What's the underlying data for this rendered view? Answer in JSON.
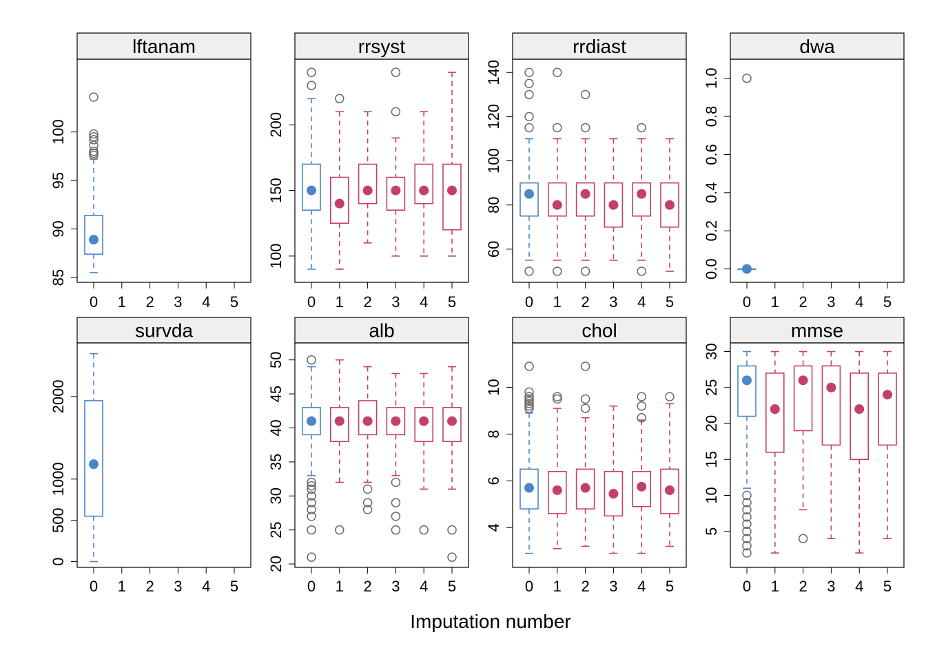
{
  "figure": {
    "xlabel": "Imputation number",
    "colors": {
      "observed": "#4a86c8",
      "imputed": "#c43f6b",
      "outlier": "#6a6a6a",
      "strip": "#efefef"
    }
  },
  "chart_data": [
    {
      "type": "box",
      "title": "lftanam",
      "categories": [
        "0",
        "1",
        "2",
        "3",
        "4",
        "5"
      ],
      "ylim": [
        84.5,
        107.5
      ],
      "yticks": [
        85,
        90,
        95,
        100
      ],
      "boxes": [
        {
          "imp": 0,
          "lower_whisker": 85.5,
          "q1": 87.4,
          "median": 88.9,
          "q3": 91.4,
          "upper_whisker": 97.2,
          "outliers": [
            97.6,
            97.8,
            98.0,
            98.6,
            99.2,
            99.5,
            99.8,
            103.6
          ]
        }
      ]
    },
    {
      "type": "box",
      "title": "rrsyst",
      "categories": [
        "0",
        "1",
        "2",
        "3",
        "4",
        "5"
      ],
      "ylim": [
        80,
        250
      ],
      "yticks": [
        100,
        150,
        200
      ],
      "boxes": [
        {
          "imp": 0,
          "lower_whisker": 90,
          "q1": 135,
          "median": 150,
          "q3": 170,
          "upper_whisker": 220,
          "outliers": [
            230,
            240
          ]
        },
        {
          "imp": 1,
          "lower_whisker": 90,
          "q1": 125,
          "median": 140,
          "q3": 160,
          "upper_whisker": 210,
          "outliers": [
            220
          ]
        },
        {
          "imp": 2,
          "lower_whisker": 110,
          "q1": 140,
          "median": 150,
          "q3": 170,
          "upper_whisker": 210,
          "outliers": []
        },
        {
          "imp": 3,
          "lower_whisker": 100,
          "q1": 135,
          "median": 150,
          "q3": 160,
          "upper_whisker": 190,
          "outliers": [
            210,
            240
          ]
        },
        {
          "imp": 4,
          "lower_whisker": 100,
          "q1": 140,
          "median": 150,
          "q3": 170,
          "upper_whisker": 210,
          "outliers": []
        },
        {
          "imp": 5,
          "lower_whisker": 100,
          "q1": 120,
          "median": 150,
          "q3": 170,
          "upper_whisker": 240,
          "outliers": []
        }
      ]
    },
    {
      "type": "box",
      "title": "rrdiast",
      "categories": [
        "0",
        "1",
        "2",
        "3",
        "4",
        "5"
      ],
      "ylim": [
        45,
        146
      ],
      "yticks": [
        60,
        80,
        100,
        120,
        140
      ],
      "boxes": [
        {
          "imp": 0,
          "lower_whisker": 55,
          "q1": 75,
          "median": 85,
          "q3": 90,
          "upper_whisker": 110,
          "outliers": [
            50,
            115,
            120,
            130,
            135,
            140
          ]
        },
        {
          "imp": 1,
          "lower_whisker": 55,
          "q1": 75,
          "median": 80,
          "q3": 90,
          "upper_whisker": 110,
          "outliers": [
            50,
            115,
            140
          ]
        },
        {
          "imp": 2,
          "lower_whisker": 55,
          "q1": 75,
          "median": 85,
          "q3": 90,
          "upper_whisker": 110,
          "outliers": [
            50,
            115,
            130
          ]
        },
        {
          "imp": 3,
          "lower_whisker": 55,
          "q1": 70,
          "median": 80,
          "q3": 90,
          "upper_whisker": 110,
          "outliers": []
        },
        {
          "imp": 4,
          "lower_whisker": 55,
          "q1": 75,
          "median": 85,
          "q3": 90,
          "upper_whisker": 110,
          "outliers": [
            50,
            115
          ]
        },
        {
          "imp": 5,
          "lower_whisker": 50,
          "q1": 70,
          "median": 80,
          "q3": 90,
          "upper_whisker": 110,
          "outliers": []
        }
      ]
    },
    {
      "type": "box",
      "title": "dwa",
      "categories": [
        "0",
        "1",
        "2",
        "3",
        "4",
        "5"
      ],
      "ylim": [
        -0.07,
        1.1
      ],
      "yticks": [
        0.0,
        0.2,
        0.4,
        0.6,
        0.8,
        1.0
      ],
      "ytick_labels": [
        "0.0",
        "0.2",
        "0.4",
        "0.6",
        "0.8",
        "1.0"
      ],
      "boxes": [
        {
          "imp": 0,
          "lower_whisker": 0,
          "q1": 0,
          "median": 0,
          "q3": 0,
          "upper_whisker": 0,
          "outliers": [
            1.0
          ]
        }
      ]
    },
    {
      "type": "box",
      "title": "survda",
      "categories": [
        "0",
        "1",
        "2",
        "3",
        "4",
        "5"
      ],
      "ylim": [
        -70,
        2650
      ],
      "yticks": [
        0,
        500,
        1000,
        2000
      ],
      "boxes": [
        {
          "imp": 0,
          "lower_whisker": 0,
          "q1": 550,
          "median": 1180,
          "q3": 1950,
          "upper_whisker": 2520,
          "outliers": []
        }
      ]
    },
    {
      "type": "box",
      "title": "alb",
      "categories": [
        "0",
        "1",
        "2",
        "3",
        "4",
        "5"
      ],
      "ylim": [
        19.5,
        52.5
      ],
      "yticks": [
        20,
        25,
        30,
        35,
        40,
        45,
        50
      ],
      "boxes": [
        {
          "imp": 0,
          "lower_whisker": 33,
          "q1": 39,
          "median": 41,
          "q3": 43,
          "upper_whisker": 49,
          "outliers": [
            21,
            25,
            27,
            28,
            29,
            30,
            31,
            31.5,
            32,
            50
          ]
        },
        {
          "imp": 1,
          "lower_whisker": 32,
          "q1": 38,
          "median": 41,
          "q3": 43,
          "upper_whisker": 50,
          "outliers": [
            25
          ]
        },
        {
          "imp": 2,
          "lower_whisker": 32,
          "q1": 39,
          "median": 41,
          "q3": 44,
          "upper_whisker": 49,
          "outliers": [
            28,
            29,
            31
          ]
        },
        {
          "imp": 3,
          "lower_whisker": 33,
          "q1": 39,
          "median": 41,
          "q3": 43,
          "upper_whisker": 48,
          "outliers": [
            25,
            27,
            29,
            32
          ]
        },
        {
          "imp": 4,
          "lower_whisker": 31,
          "q1": 38,
          "median": 41,
          "q3": 43,
          "upper_whisker": 48,
          "outliers": [
            25
          ]
        },
        {
          "imp": 5,
          "lower_whisker": 31,
          "q1": 38,
          "median": 41,
          "q3": 43,
          "upper_whisker": 49,
          "outliers": [
            21,
            25
          ]
        }
      ]
    },
    {
      "type": "box",
      "title": "chol",
      "categories": [
        "0",
        "1",
        "2",
        "3",
        "4",
        "5"
      ],
      "ylim": [
        2.3,
        11.9
      ],
      "yticks": [
        4,
        6,
        8,
        10
      ],
      "boxes": [
        {
          "imp": 0,
          "lower_whisker": 2.9,
          "q1": 4.8,
          "median": 5.7,
          "q3": 6.5,
          "upper_whisker": 8.9,
          "outliers": [
            9.1,
            9.2,
            9.3,
            9.4,
            9.5,
            9.6,
            9.8,
            10.9
          ]
        },
        {
          "imp": 1,
          "lower_whisker": 3.1,
          "q1": 4.6,
          "median": 5.6,
          "q3": 6.4,
          "upper_whisker": 9.1,
          "outliers": [
            9.5,
            9.6
          ]
        },
        {
          "imp": 2,
          "lower_whisker": 3.2,
          "q1": 4.8,
          "median": 5.7,
          "q3": 6.5,
          "upper_whisker": 8.7,
          "outliers": [
            9.1,
            9.5,
            10.9
          ]
        },
        {
          "imp": 3,
          "lower_whisker": 2.9,
          "q1": 4.5,
          "median": 5.45,
          "q3": 6.4,
          "upper_whisker": 9.2,
          "outliers": []
        },
        {
          "imp": 4,
          "lower_whisker": 2.9,
          "q1": 4.9,
          "median": 5.75,
          "q3": 6.4,
          "upper_whisker": 8.6,
          "outliers": [
            8.7,
            9.2,
            9.6
          ]
        },
        {
          "imp": 5,
          "lower_whisker": 3.2,
          "q1": 4.6,
          "median": 5.6,
          "q3": 6.5,
          "upper_whisker": 9.3,
          "outliers": [
            9.6
          ]
        }
      ]
    },
    {
      "type": "box",
      "title": "mmse",
      "categories": [
        "0",
        "1",
        "2",
        "3",
        "4",
        "5"
      ],
      "ylim": [
        0,
        31.2
      ],
      "yticks": [
        5,
        10,
        15,
        20,
        25,
        30
      ],
      "boxes": [
        {
          "imp": 0,
          "lower_whisker": 11,
          "q1": 21,
          "median": 26,
          "q3": 28,
          "upper_whisker": 30,
          "outliers": [
            2,
            3,
            4,
            5,
            6,
            7,
            8,
            9,
            10
          ]
        },
        {
          "imp": 1,
          "lower_whisker": 2,
          "q1": 16,
          "median": 22,
          "q3": 27,
          "upper_whisker": 30,
          "outliers": []
        },
        {
          "imp": 2,
          "lower_whisker": 8,
          "q1": 19,
          "median": 26,
          "q3": 28,
          "upper_whisker": 30,
          "outliers": [
            4
          ]
        },
        {
          "imp": 3,
          "lower_whisker": 4,
          "q1": 17,
          "median": 25,
          "q3": 28,
          "upper_whisker": 30,
          "outliers": []
        },
        {
          "imp": 4,
          "lower_whisker": 2,
          "q1": 15,
          "median": 22,
          "q3": 27,
          "upper_whisker": 30,
          "outliers": []
        },
        {
          "imp": 5,
          "lower_whisker": 4,
          "q1": 17,
          "median": 24,
          "q3": 27,
          "upper_whisker": 30,
          "outliers": []
        }
      ]
    }
  ]
}
